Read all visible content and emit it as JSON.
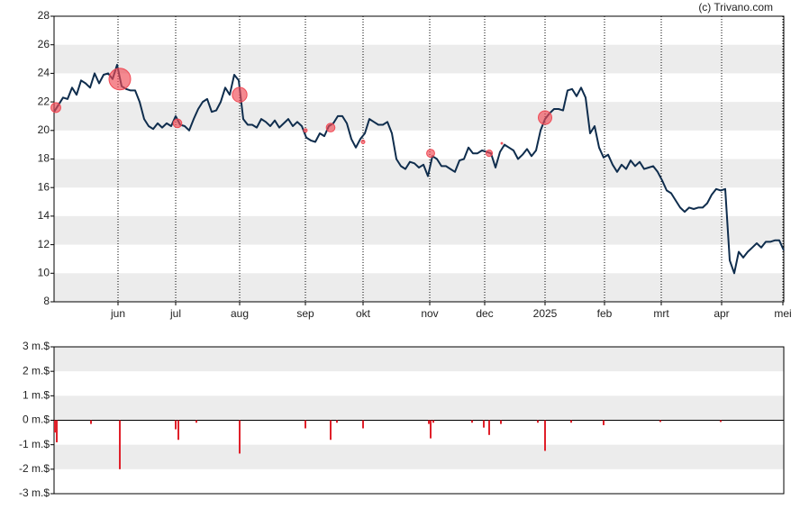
{
  "watermark": "(c) Trivano.com",
  "chart_data": [
    {
      "type": "line",
      "color": "#0f2d4d",
      "xlim": [
        0,
        162
      ],
      "ylim": [
        8,
        28
      ],
      "yticks": [
        8,
        10,
        12,
        14,
        16,
        18,
        20,
        22,
        24,
        26,
        28
      ],
      "xticks": [
        {
          "value": 14.2,
          "label": "jun"
        },
        {
          "value": 27,
          "label": "jul"
        },
        {
          "value": 41.2,
          "label": "aug"
        },
        {
          "value": 55.8,
          "label": "sep"
        },
        {
          "value": 68.6,
          "label": "okt"
        },
        {
          "value": 83.4,
          "label": "nov"
        },
        {
          "value": 95.6,
          "label": "dec"
        },
        {
          "value": 109,
          "label": "2025"
        },
        {
          "value": 122.2,
          "label": "feb"
        },
        {
          "value": 134.8,
          "label": "mrt"
        },
        {
          "value": 148.2,
          "label": "apr"
        },
        {
          "value": 161.8,
          "label": "mei"
        }
      ],
      "x": [
        0,
        1,
        2,
        3,
        4,
        5,
        6,
        7,
        8,
        9,
        10,
        11,
        12,
        13,
        14,
        15,
        16,
        17,
        18,
        19,
        20,
        21,
        22,
        23,
        24,
        25,
        26,
        27,
        28,
        29,
        30,
        31,
        32,
        33,
        34,
        35,
        36,
        37,
        38,
        39,
        40,
        41,
        42,
        43,
        44,
        45,
        46,
        47,
        48,
        49,
        50,
        51,
        52,
        53,
        54,
        55,
        56,
        57,
        58,
        59,
        60,
        61,
        62,
        63,
        64,
        65,
        66,
        67,
        68,
        69,
        70,
        71,
        72,
        73,
        74,
        75,
        76,
        77,
        78,
        79,
        80,
        81,
        82,
        83,
        84,
        85,
        86,
        87,
        88,
        89,
        90,
        91,
        92,
        93,
        94,
        95,
        96,
        97,
        98,
        99,
        100,
        101,
        102,
        103,
        104,
        105,
        106,
        107,
        108,
        109,
        110,
        111,
        112,
        113,
        114,
        115,
        116,
        117,
        118,
        119,
        120,
        121,
        122,
        123,
        124,
        125,
        126,
        127,
        128,
        129,
        130,
        131,
        132,
        133,
        134,
        135,
        136,
        137,
        138,
        139,
        140,
        141,
        142,
        143,
        144,
        145,
        146,
        147,
        148,
        149,
        150,
        151,
        152,
        153,
        154,
        155,
        156,
        157,
        158,
        159,
        160,
        161,
        162
      ],
      "values": [
        21.3,
        21.8,
        22.3,
        22.2,
        23.0,
        22.5,
        23.5,
        23.3,
        23.0,
        24.0,
        23.3,
        23.9,
        24.0,
        23.6,
        24.6,
        23.1,
        22.9,
        22.8,
        22.8,
        22.0,
        20.8,
        20.3,
        20.1,
        20.5,
        20.2,
        20.5,
        20.3,
        21.0,
        20.4,
        20.3,
        20.0,
        20.8,
        21.5,
        22.0,
        22.2,
        21.3,
        21.4,
        22.0,
        23.0,
        22.5,
        23.9,
        23.5,
        20.8,
        20.4,
        20.4,
        20.2,
        20.8,
        20.6,
        20.3,
        20.7,
        20.2,
        20.5,
        20.8,
        20.3,
        20.6,
        20.3,
        19.5,
        19.3,
        19.2,
        19.8,
        19.6,
        20.3,
        20.5,
        21.0,
        21.0,
        20.5,
        19.4,
        18.8,
        19.4,
        19.8,
        20.8,
        20.6,
        20.4,
        20.4,
        20.6,
        19.8,
        18.0,
        17.5,
        17.3,
        17.8,
        17.7,
        17.4,
        17.6,
        16.8,
        18.2,
        18.0,
        17.5,
        17.5,
        17.3,
        17.1,
        17.9,
        18.0,
        18.8,
        18.4,
        18.4,
        18.6,
        18.5,
        18.4,
        17.4,
        18.5,
        19.0,
        18.8,
        18.6,
        18.0,
        18.3,
        18.7,
        18.2,
        18.6,
        20.0,
        20.8,
        21.2,
        21.5,
        21.5,
        21.4,
        22.8,
        22.9,
        22.4,
        23.0,
        22.3,
        19.8,
        20.3,
        18.8,
        18.1,
        18.3,
        17.6,
        17.1,
        17.6,
        17.3,
        17.9,
        17.5,
        17.8,
        17.3,
        17.4,
        17.5,
        17.1,
        16.5,
        15.8,
        15.6,
        15.1,
        14.6,
        14.3,
        14.6,
        14.5,
        14.6,
        14.6,
        14.9,
        15.5,
        15.9,
        15.8,
        15.9,
        10.9,
        10.0,
        11.5,
        11.1,
        11.5,
        11.8,
        12.1,
        11.8,
        12.2,
        12.2,
        12.3,
        12.3,
        11.6
      ],
      "points": {
        "color": "#f04a55",
        "x": [
          0.4,
          14.6,
          27.4,
          41.2,
          55.8,
          61.4,
          68.6,
          83.6,
          96.6,
          99.4,
          109
        ],
        "values": [
          21.6,
          23.6,
          20.5,
          22.5,
          20.0,
          20.2,
          19.2,
          18.4,
          18.4,
          19.1,
          20.9
        ],
        "sizes": [
          0.9,
          2.0,
          0.8,
          1.36,
          0.33,
          0.8,
          0.33,
          0.74,
          0.6,
          0.15,
          1.25
        ]
      }
    },
    {
      "type": "bar",
      "color": "#e0202a",
      "xlim": [
        0,
        162
      ],
      "ylim": [
        -3,
        3
      ],
      "yticks": [
        {
          "value": -3,
          "label": "-3 m.$"
        },
        {
          "value": -2,
          "label": "-2 m.$"
        },
        {
          "value": -1,
          "label": "-1 m.$"
        },
        {
          "value": 0,
          "label": "0 m.$"
        },
        {
          "value": 1,
          "label": "1 m.$"
        },
        {
          "value": 2,
          "label": "2 m.$"
        },
        {
          "value": 3,
          "label": "3 m.$"
        }
      ],
      "x": [
        0.2,
        0.6,
        8.2,
        14.6,
        27,
        27.6,
        31.6,
        41.2,
        55.8,
        61.4,
        62.8,
        68.6,
        83.2,
        83.6,
        84.2,
        92.8,
        95.4,
        96.6,
        99.2,
        107.4,
        109,
        114.8,
        122,
        134.6,
        148
      ],
      "values": [
        -0.5,
        -0.9,
        -0.15,
        -2.0,
        -0.37,
        -0.8,
        -0.1,
        -1.36,
        -0.33,
        -0.8,
        -0.1,
        -0.33,
        -0.15,
        -0.74,
        -0.1,
        -0.1,
        -0.3,
        -0.6,
        -0.15,
        -0.1,
        -1.25,
        -0.1,
        -0.2,
        -0.07,
        -0.07
      ]
    }
  ]
}
